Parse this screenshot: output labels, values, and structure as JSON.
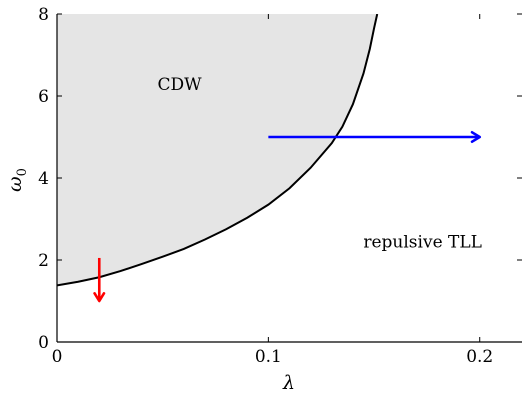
{
  "chart_data": {
    "type": "area",
    "title": "",
    "xlabel": "λ",
    "ylabel": "ω",
    "ylabel_subscript": "0",
    "xlim": [
      0,
      0.22
    ],
    "ylim": [
      0,
      8
    ],
    "xticks": [
      0,
      0.1,
      0.2
    ],
    "xtick_labels": [
      "0",
      "0.1",
      "0.2"
    ],
    "yticks": [
      0,
      2,
      4,
      6,
      8
    ],
    "ytick_labels": [
      "0",
      "2",
      "4",
      "6",
      "8"
    ],
    "grid": false,
    "fill_color": "#e5e5e5",
    "series": [
      {
        "color": "#000000",
        "x": [
          0,
          0.01,
          0.02,
          0.03,
          0.04,
          0.05,
          0.06,
          0.07,
          0.08,
          0.09,
          0.1,
          0.11,
          0.12,
          0.13,
          0.135,
          0.14,
          0.145,
          0.148,
          0.15,
          0.1515
        ],
        "y": [
          1.38,
          1.47,
          1.58,
          1.73,
          1.9,
          2.08,
          2.27,
          2.5,
          2.75,
          3.03,
          3.35,
          3.75,
          4.25,
          4.85,
          5.25,
          5.8,
          6.55,
          7.15,
          7.65,
          8.0
        ]
      }
    ],
    "annotations": [
      {
        "text": "CDW",
        "x": 0.058,
        "y": 6.15
      },
      {
        "text": "repulsive TLL",
        "x": 0.173,
        "y": 2.3
      }
    ],
    "arrows": [
      {
        "color": "#ff0000",
        "x0": 0.02,
        "y0": 2.05,
        "x1": 0.02,
        "y1": 1.0
      },
      {
        "color": "#0000ff",
        "x0": 0.1,
        "y0": 5.0,
        "x1": 0.2,
        "y1": 5.0
      }
    ]
  }
}
